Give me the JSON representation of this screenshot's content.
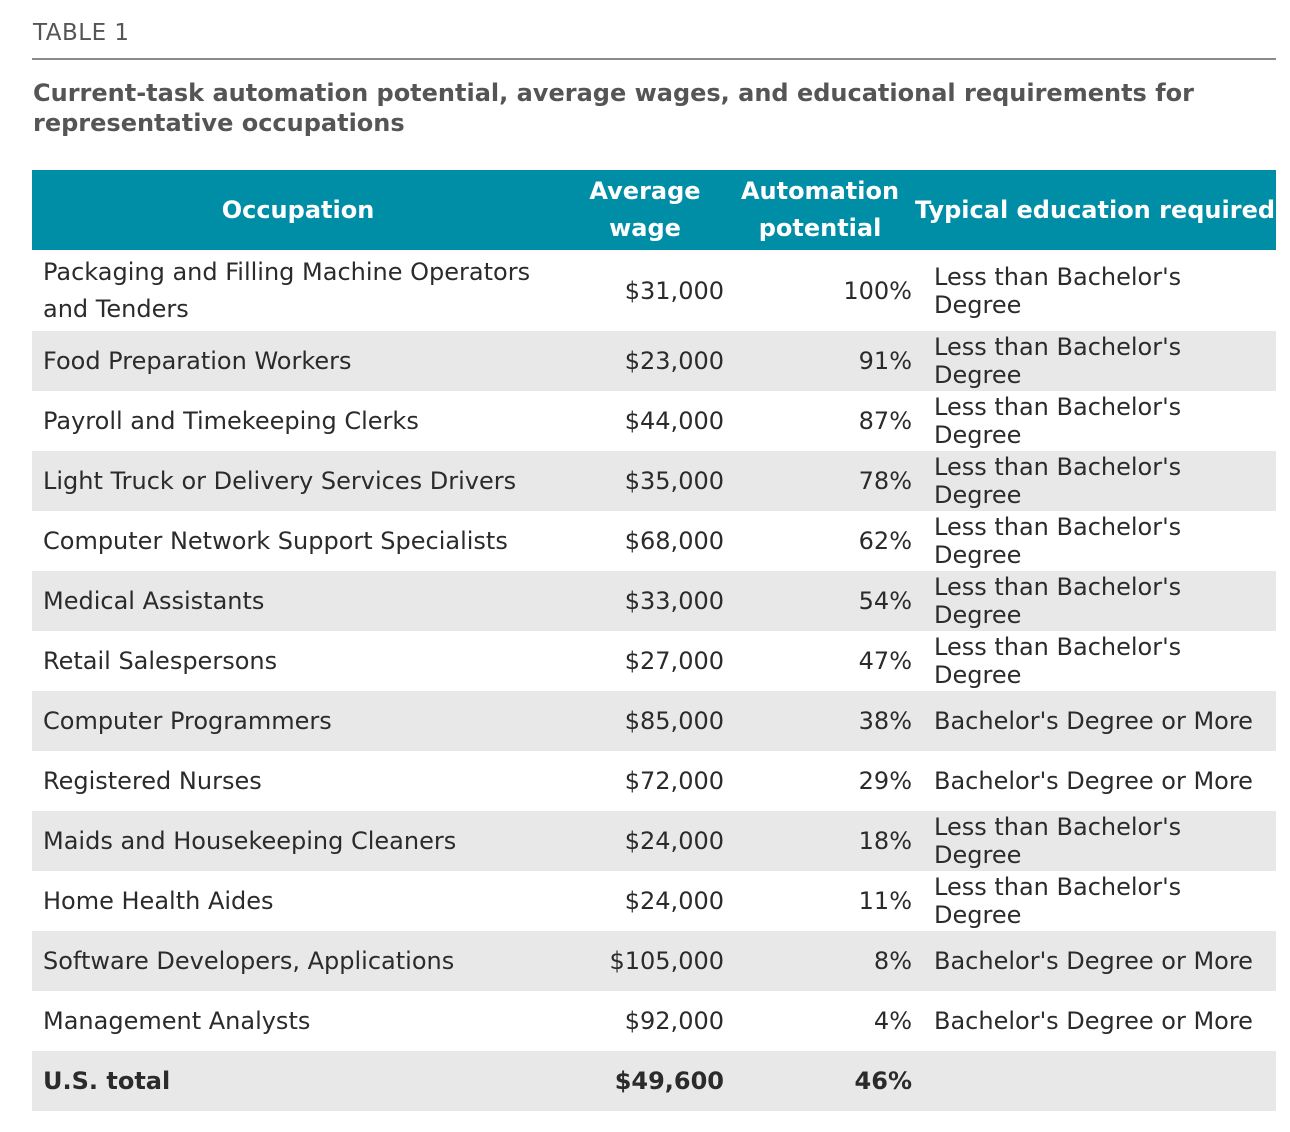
{
  "table_label": "TABLE 1",
  "title": "Current-task automation potential, average wages, and educational requirements for representative occupations",
  "headers": {
    "occupation": "Occupation",
    "average_wage": "Average wage",
    "automation_potential": "Automation potential",
    "education": "Typical education required"
  },
  "rows": [
    {
      "occupation": "Packaging and Filling Machine Operators and Tenders",
      "wage": "$31,000",
      "automation": "100%",
      "education": "Less than Bachelor's Degree"
    },
    {
      "occupation": "Food Preparation Workers",
      "wage": "$23,000",
      "automation": "91%",
      "education": "Less than Bachelor's Degree"
    },
    {
      "occupation": "Payroll and Timekeeping Clerks",
      "wage": "$44,000",
      "automation": "87%",
      "education": "Less than Bachelor's Degree"
    },
    {
      "occupation": "Light Truck or Delivery Services Drivers",
      "wage": "$35,000",
      "automation": "78%",
      "education": "Less than Bachelor's Degree"
    },
    {
      "occupation": "Computer Network Support Specialists",
      "wage": "$68,000",
      "automation": "62%",
      "education": "Less than Bachelor's Degree"
    },
    {
      "occupation": "Medical Assistants",
      "wage": "$33,000",
      "automation": "54%",
      "education": "Less than Bachelor's Degree"
    },
    {
      "occupation": "Retail Salespersons",
      "wage": "$27,000",
      "automation": "47%",
      "education": "Less than Bachelor's Degree"
    },
    {
      "occupation": "Computer Programmers",
      "wage": "$85,000",
      "automation": "38%",
      "education": "Bachelor's Degree or More"
    },
    {
      "occupation": "Registered Nurses",
      "wage": "$72,000",
      "automation": "29%",
      "education": "Bachelor's Degree or More"
    },
    {
      "occupation": "Maids and Housekeeping Cleaners",
      "wage": "$24,000",
      "automation": "18%",
      "education": "Less than Bachelor's Degree"
    },
    {
      "occupation": "Home Health Aides",
      "wage": "$24,000",
      "automation": "11%",
      "education": "Less than Bachelor's Degree"
    },
    {
      "occupation": "Software Developers, Applications",
      "wage": "$105,000",
      "automation": "8%",
      "education": "Bachelor's Degree or More"
    },
    {
      "occupation": "Management Analysts",
      "wage": "$92,000",
      "automation": "4%",
      "education": "Bachelor's Degree or More"
    }
  ],
  "total": {
    "occupation": "U.S. total",
    "wage": "$49,600",
    "automation": "46%",
    "education": ""
  },
  "colors": {
    "header_bg": "#008da6",
    "header_text": "#ffffff",
    "stripe_bg": "#e8e8e8",
    "body_text": "#2b2b2b"
  }
}
